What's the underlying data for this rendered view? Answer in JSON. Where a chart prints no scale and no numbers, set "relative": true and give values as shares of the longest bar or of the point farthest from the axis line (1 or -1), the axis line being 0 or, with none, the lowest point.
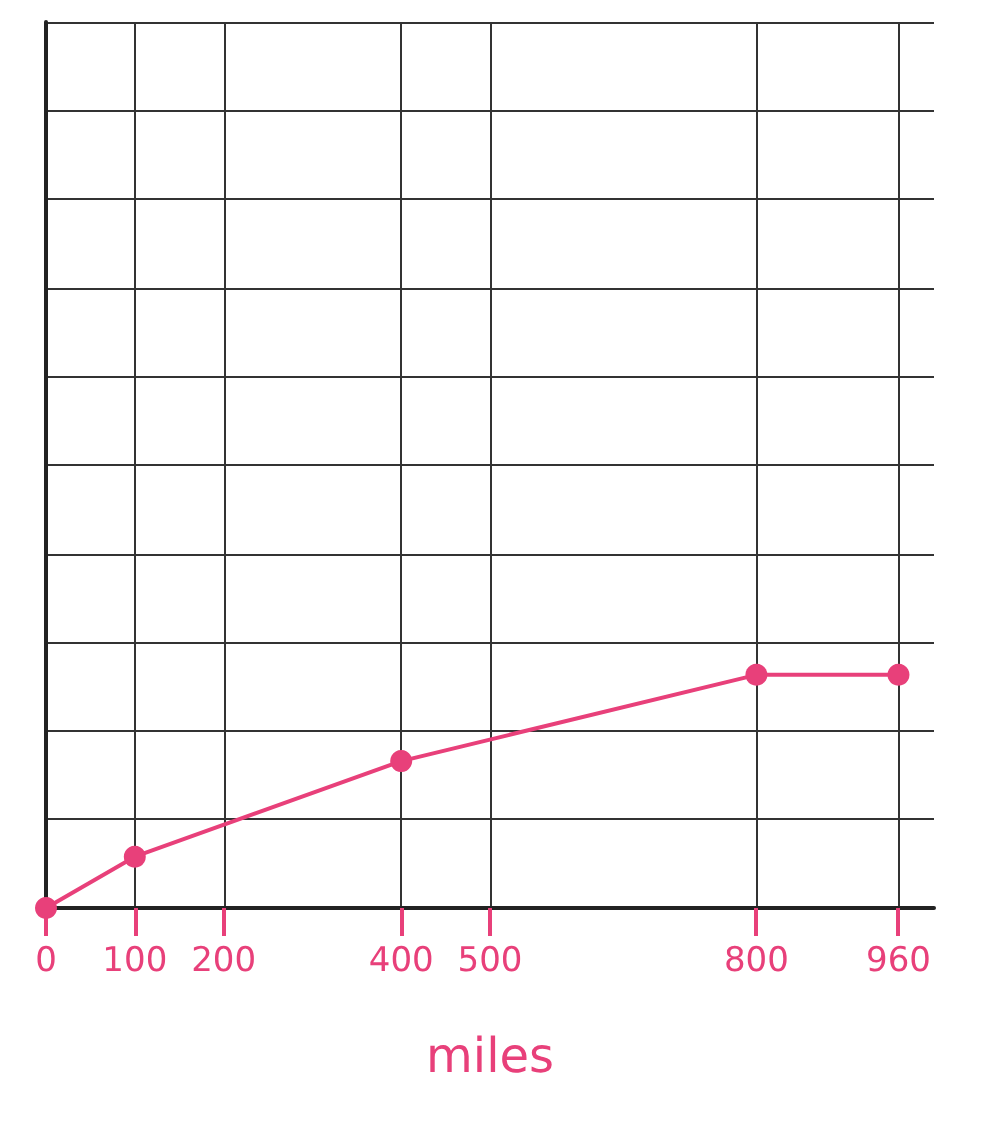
{
  "chart_data": {
    "type": "line",
    "relative": true,
    "xlabel": "miles",
    "x": [
      0,
      100,
      400,
      800,
      960
    ],
    "values": [
      0,
      0.22,
      0.63,
      1,
      1
    ],
    "color": "#e8407a",
    "marker": "circle",
    "line_style": "solid",
    "grid": true,
    "xlim": [
      0,
      1000
    ],
    "xticks": [
      0,
      100,
      200,
      400,
      500,
      800,
      960
    ]
  }
}
